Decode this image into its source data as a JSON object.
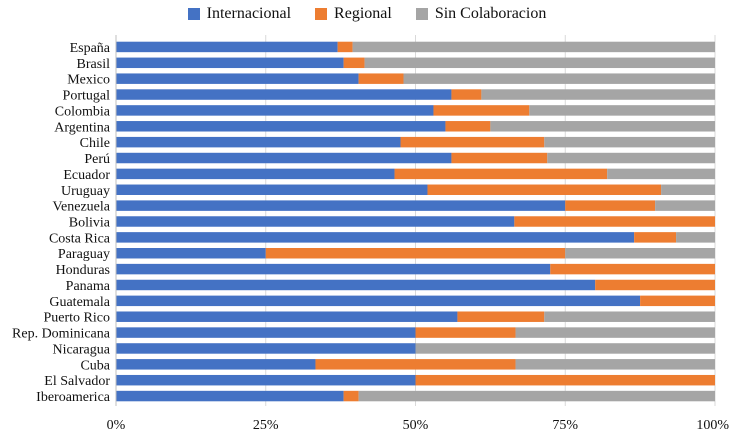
{
  "chart_data": {
    "type": "bar",
    "orientation": "horizontal",
    "stacked": true,
    "normalized": true,
    "title": "",
    "xlabel": "",
    "ylabel": "",
    "xlim": [
      0,
      100
    ],
    "legend_position": "top",
    "grid": true,
    "categories": [
      "España",
      "Brasil",
      "Mexico",
      "Portugal",
      "Colombia",
      "Argentina",
      "Chile",
      "Perú",
      "Ecuador",
      "Uruguay",
      "Venezuela",
      "Bolivia",
      "Costa Rica",
      "Paraguay",
      "Honduras",
      "Panama",
      "Guatemala",
      "Puerto Rico",
      "Rep. Dominicana",
      "Nicaragua",
      "Cuba",
      "El Salvador",
      "Iberoamerica"
    ],
    "series": [
      {
        "name": "Internacional",
        "color": "#4472C4",
        "values": [
          37,
          38,
          40.5,
          56,
          53,
          55,
          47.5,
          56,
          46.5,
          52,
          75,
          66.5,
          86.5,
          25,
          72.5,
          80,
          87.5,
          57,
          50,
          50,
          33.3,
          50,
          38
        ]
      },
      {
        "name": "Regional",
        "color": "#ED7D31",
        "values": [
          2.5,
          3.5,
          7.5,
          5,
          16,
          7.5,
          24,
          16,
          35.5,
          39,
          15,
          33.5,
          7,
          50,
          27.5,
          20,
          12.5,
          14.5,
          16.7,
          0,
          33.4,
          50,
          2.5
        ]
      },
      {
        "name": "Sin Colaboracion",
        "color": "#A5A5A5",
        "values": [
          60.5,
          58.5,
          52,
          39,
          31,
          37.5,
          28.5,
          28,
          18,
          9,
          10,
          0,
          6.5,
          25,
          0,
          0,
          0,
          28.5,
          33.3,
          50,
          33.3,
          0,
          59.5
        ]
      }
    ],
    "x_ticks": [
      "0%",
      "25%",
      "50%",
      "75%",
      "100%"
    ]
  }
}
